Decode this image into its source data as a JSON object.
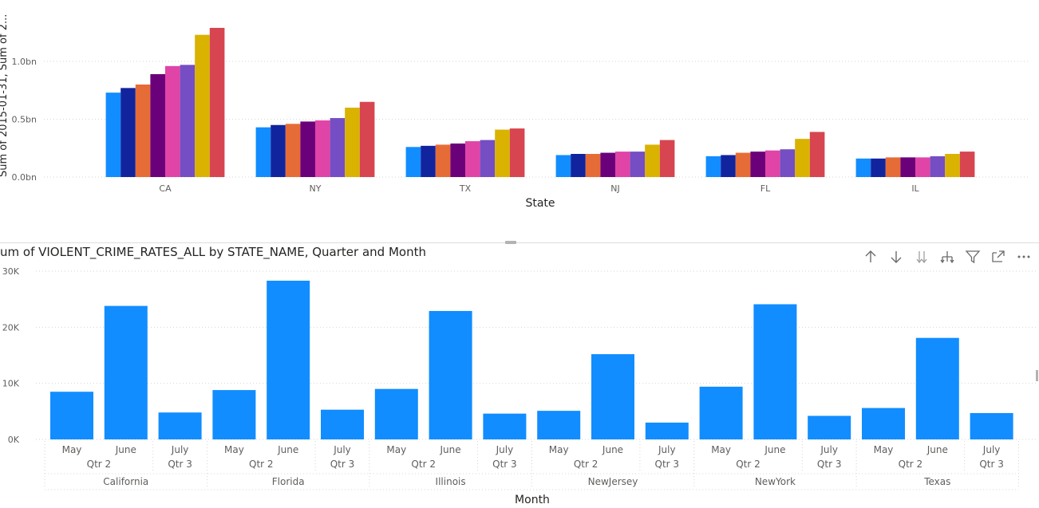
{
  "top_chart": {
    "ylabel": "Sum of 2015-01-31, Sum of 2...",
    "xlabel": "State",
    "colors": [
      "#118DFF",
      "#12239E",
      "#E66C37",
      "#6B007B",
      "#E044A7",
      "#744EC2",
      "#D9B300",
      "#D64550"
    ]
  },
  "bottom_visual": {
    "title": "um of VIOLENT_CRIME_RATES_ALL by STATE_NAME, Quarter and Month",
    "xlabel": "Month",
    "bar_color": "#118DFF",
    "toolbar": [
      {
        "name": "drill-up-icon"
      },
      {
        "name": "drill-down-icon"
      },
      {
        "name": "next-level-icon"
      },
      {
        "name": "expand-hierarchy-icon"
      },
      {
        "name": "filter-icon"
      },
      {
        "name": "focus-mode-icon"
      },
      {
        "name": "more-options-icon"
      }
    ]
  },
  "chart_data": [
    {
      "type": "bar",
      "xlabel": "State",
      "ylabel": "Sum of 2015-01-31, Sum of 2...",
      "categories": [
        "CA",
        "NY",
        "TX",
        "NJ",
        "FL",
        "IL"
      ],
      "y_ticks": [
        "0.0bn",
        "0.5bn",
        "1.0bn"
      ],
      "ylim": [
        0,
        1.3
      ],
      "units": "bn",
      "series": [
        {
          "values": [
            0.73,
            0.43,
            0.26,
            0.19,
            0.18,
            0.16
          ]
        },
        {
          "values": [
            0.77,
            0.45,
            0.27,
            0.2,
            0.19,
            0.16
          ]
        },
        {
          "values": [
            0.8,
            0.46,
            0.28,
            0.2,
            0.21,
            0.17
          ]
        },
        {
          "values": [
            0.89,
            0.48,
            0.29,
            0.21,
            0.22,
            0.17
          ]
        },
        {
          "values": [
            0.96,
            0.49,
            0.31,
            0.22,
            0.23,
            0.17
          ]
        },
        {
          "values": [
            0.97,
            0.51,
            0.32,
            0.22,
            0.24,
            0.18
          ]
        },
        {
          "values": [
            1.23,
            0.6,
            0.41,
            0.28,
            0.33,
            0.2
          ]
        },
        {
          "values": [
            1.29,
            0.65,
            0.42,
            0.32,
            0.39,
            0.22
          ]
        }
      ],
      "grid": true,
      "legend": "none"
    },
    {
      "type": "bar",
      "title": "um of VIOLENT_CRIME_RATES_ALL by STATE_NAME, Quarter and Month",
      "xlabel": "Month",
      "y_ticks": [
        "0K",
        "10K",
        "20K",
        "30K"
      ],
      "ylim": [
        0,
        30000
      ],
      "groups": [
        {
          "state": "California",
          "quarters": [
            {
              "label": "Qtr 2",
              "months": [
                {
                  "label": "May",
                  "value": 8500
                },
                {
                  "label": "June",
                  "value": 23800
                }
              ]
            },
            {
              "label": "Qtr 3",
              "months": [
                {
                  "label": "July",
                  "value": 4800
                }
              ]
            }
          ]
        },
        {
          "state": "Florida",
          "quarters": [
            {
              "label": "Qtr 2",
              "months": [
                {
                  "label": "May",
                  "value": 8800
                },
                {
                  "label": "June",
                  "value": 28300
                }
              ]
            },
            {
              "label": "Qtr 3",
              "months": [
                {
                  "label": "July",
                  "value": 5300
                }
              ]
            }
          ]
        },
        {
          "state": "Illinois",
          "quarters": [
            {
              "label": "Qtr 2",
              "months": [
                {
                  "label": "May",
                  "value": 9000
                },
                {
                  "label": "June",
                  "value": 22900
                }
              ]
            },
            {
              "label": "Qtr 3",
              "months": [
                {
                  "label": "July",
                  "value": 4600
                }
              ]
            }
          ]
        },
        {
          "state": "NewJersey",
          "quarters": [
            {
              "label": "Qtr 2",
              "months": [
                {
                  "label": "May",
                  "value": 5100
                },
                {
                  "label": "June",
                  "value": 15200
                }
              ]
            },
            {
              "label": "Qtr 3",
              "months": [
                {
                  "label": "July",
                  "value": 3000
                }
              ]
            }
          ]
        },
        {
          "state": "NewYork",
          "quarters": [
            {
              "label": "Qtr 2",
              "months": [
                {
                  "label": "May",
                  "value": 9400
                },
                {
                  "label": "June",
                  "value": 24100
                }
              ]
            },
            {
              "label": "Qtr 3",
              "months": [
                {
                  "label": "July",
                  "value": 4200
                }
              ]
            }
          ]
        },
        {
          "state": "Texas",
          "quarters": [
            {
              "label": "Qtr 2",
              "months": [
                {
                  "label": "May",
                  "value": 5600
                },
                {
                  "label": "June",
                  "value": 18100
                }
              ]
            },
            {
              "label": "Qtr 3",
              "months": [
                {
                  "label": "July",
                  "value": 4700
                }
              ]
            }
          ]
        }
      ],
      "grid": true,
      "legend": "none"
    }
  ]
}
